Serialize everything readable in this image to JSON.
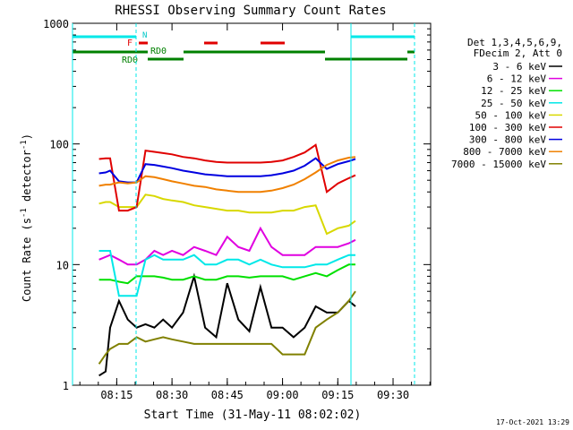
{
  "chart_data": {
    "type": "line",
    "title": "RHESSI Observing Summary Count Rates",
    "xlabel": "Start Time (31-May-11 08:02:02)",
    "ylabel_main": "Count Rate (s",
    "ylabel_sup1": "-1",
    "ylabel_mid": " detector",
    "ylabel_sup2": "-1",
    "ylabel_end": ")",
    "y_scale": "log",
    "ylim": [
      1,
      1000
    ],
    "xlim_minutes": [
      8.05,
      9.67
    ],
    "x_ticks": [
      {
        "label": "08:15",
        "value": 8.25
      },
      {
        "label": "08:30",
        "value": 8.5
      },
      {
        "label": "08:45",
        "value": 8.75
      },
      {
        "label": "09:00",
        "value": 9.0
      },
      {
        "label": "09:15",
        "value": 9.25
      },
      {
        "label": "09:30",
        "value": 9.5
      }
    ],
    "y_ticks": [
      {
        "label": "1",
        "value": 1
      },
      {
        "label": "10",
        "value": 10
      },
      {
        "label": "100",
        "value": 100
      },
      {
        "label": "1000",
        "value": 1000
      }
    ],
    "legend_header": [
      "Det 1,3,4,5,6,9,",
      "FDecim 2, Att 0"
    ],
    "legend_placement": "right",
    "timestamp": "17-Oct-2021 13:29",
    "flags": {
      "N_label": "N",
      "F_label": "F",
      "RD0_label_top": "RD0",
      "RD0_label_bottom": "RD0"
    },
    "series": [
      {
        "name": "3 - 6 keV",
        "color": "#000000",
        "x": [
          8.17,
          8.2,
          8.22,
          8.26,
          8.3,
          8.34,
          8.38,
          8.42,
          8.46,
          8.5,
          8.55,
          8.6,
          8.65,
          8.7,
          8.75,
          8.8,
          8.85,
          8.9,
          8.95,
          9.0,
          9.05,
          9.1,
          9.15,
          9.2,
          9.25,
          9.3,
          9.33
        ],
        "y": [
          1.2,
          1.3,
          3.0,
          5.0,
          3.5,
          3.0,
          3.2,
          3.0,
          3.5,
          3.0,
          4.0,
          8.0,
          3.0,
          2.5,
          7.0,
          3.5,
          2.8,
          6.5,
          3.0,
          3.0,
          2.5,
          3.0,
          4.5,
          4.0,
          4.0,
          5.0,
          4.5
        ]
      },
      {
        "name": "6 - 12 keV",
        "color": "#e000e0",
        "x": [
          8.17,
          8.22,
          8.26,
          8.3,
          8.34,
          8.38,
          8.42,
          8.46,
          8.5,
          8.55,
          8.6,
          8.65,
          8.7,
          8.75,
          8.8,
          8.85,
          8.9,
          8.95,
          9.0,
          9.05,
          9.1,
          9.15,
          9.2,
          9.25,
          9.3,
          9.33
        ],
        "y": [
          11,
          12,
          11,
          10,
          10,
          11,
          13,
          12,
          13,
          12,
          14,
          13,
          12,
          17,
          14,
          13,
          20,
          14,
          12,
          12,
          12,
          14,
          14,
          14,
          15,
          16
        ]
      },
      {
        "name": "12 - 25 keV",
        "color": "#00e000",
        "x": [
          8.17,
          8.22,
          8.26,
          8.3,
          8.34,
          8.38,
          8.42,
          8.46,
          8.5,
          8.55,
          8.6,
          8.65,
          8.7,
          8.75,
          8.8,
          8.85,
          8.9,
          8.95,
          9.0,
          9.05,
          9.1,
          9.15,
          9.2,
          9.25,
          9.3,
          9.33
        ],
        "y": [
          7.5,
          7.5,
          7.2,
          7.0,
          8.0,
          8.0,
          8.0,
          7.8,
          7.5,
          7.5,
          8.0,
          7.5,
          7.5,
          8.0,
          8.0,
          7.8,
          8.0,
          8.0,
          8.0,
          7.5,
          8.0,
          8.5,
          8.0,
          9.0,
          10,
          10
        ]
      },
      {
        "name": "25 - 50 keV",
        "color": "#00e8e8",
        "x": [
          8.17,
          8.22,
          8.26,
          8.3,
          8.34,
          8.38,
          8.42,
          8.46,
          8.5,
          8.55,
          8.6,
          8.65,
          8.7,
          8.75,
          8.8,
          8.85,
          8.9,
          8.95,
          9.0,
          9.05,
          9.1,
          9.15,
          9.2,
          9.25,
          9.3,
          9.33
        ],
        "y": [
          13,
          13,
          5.5,
          5.5,
          5.5,
          11,
          12,
          11,
          11,
          11,
          12,
          10,
          10,
          11,
          11,
          10,
          11,
          10,
          9.5,
          9.5,
          9.5,
          10,
          10,
          11,
          12,
          12
        ]
      },
      {
        "name": "50 - 100 keV",
        "color": "#d8d800",
        "x": [
          8.17,
          8.2,
          8.22,
          8.26,
          8.3,
          8.34,
          8.38,
          8.42,
          8.46,
          8.5,
          8.55,
          8.6,
          8.65,
          8.7,
          8.75,
          8.8,
          8.85,
          8.9,
          8.95,
          9.0,
          9.05,
          9.1,
          9.15,
          9.2,
          9.25,
          9.3,
          9.33
        ],
        "y": [
          32,
          33,
          33,
          30,
          30,
          30,
          38,
          37,
          35,
          34,
          33,
          31,
          30,
          29,
          28,
          28,
          27,
          27,
          27,
          28,
          28,
          30,
          31,
          18,
          20,
          21,
          23
        ]
      },
      {
        "name": "100 - 300 keV",
        "color": "#e00000",
        "x": [
          8.17,
          8.2,
          8.22,
          8.26,
          8.3,
          8.34,
          8.38,
          8.42,
          8.46,
          8.5,
          8.55,
          8.6,
          8.65,
          8.7,
          8.75,
          8.8,
          8.85,
          8.9,
          8.95,
          9.0,
          9.05,
          9.1,
          9.15,
          9.2,
          9.25,
          9.3,
          9.33
        ],
        "y": [
          75,
          76,
          76,
          28,
          28,
          30,
          88,
          86,
          84,
          82,
          78,
          76,
          73,
          71,
          70,
          70,
          70,
          70,
          71,
          73,
          78,
          85,
          98,
          40,
          47,
          52,
          55
        ]
      },
      {
        "name": "300 - 800 keV",
        "color": "#0000e0",
        "x": [
          8.17,
          8.2,
          8.22,
          8.26,
          8.3,
          8.34,
          8.38,
          8.42,
          8.46,
          8.5,
          8.55,
          8.6,
          8.65,
          8.7,
          8.75,
          8.8,
          8.85,
          8.9,
          8.95,
          9.0,
          9.05,
          9.1,
          9.15,
          9.2,
          9.25,
          9.3,
          9.33
        ],
        "y": [
          57,
          58,
          60,
          49,
          48,
          48,
          68,
          67,
          65,
          63,
          60,
          58,
          56,
          55,
          54,
          54,
          54,
          54,
          55,
          57,
          60,
          66,
          76,
          62,
          68,
          72,
          75
        ]
      },
      {
        "name": "800 - 7000 keV",
        "color": "#f08000",
        "x": [
          8.17,
          8.2,
          8.22,
          8.26,
          8.3,
          8.34,
          8.38,
          8.42,
          8.46,
          8.5,
          8.55,
          8.6,
          8.65,
          8.7,
          8.75,
          8.8,
          8.85,
          8.9,
          8.95,
          9.0,
          9.05,
          9.1,
          9.15,
          9.2,
          9.25,
          9.3,
          9.33
        ],
        "y": [
          45,
          46,
          46,
          48,
          47,
          48,
          54,
          53,
          51,
          49,
          47,
          45,
          44,
          42,
          41,
          40,
          40,
          40,
          41,
          43,
          46,
          51,
          58,
          67,
          73,
          77,
          78
        ]
      },
      {
        "name": "7000 - 15000 keV",
        "color": "#808000",
        "x": [
          8.17,
          8.2,
          8.22,
          8.26,
          8.3,
          8.34,
          8.38,
          8.42,
          8.46,
          8.5,
          8.55,
          8.6,
          8.65,
          8.7,
          8.75,
          8.8,
          8.85,
          8.9,
          8.95,
          9.0,
          9.05,
          9.1,
          9.15,
          9.2,
          9.25,
          9.3,
          9.33
        ],
        "y": [
          1.5,
          1.8,
          2.0,
          2.2,
          2.2,
          2.5,
          2.3,
          2.4,
          2.5,
          2.4,
          2.3,
          2.2,
          2.2,
          2.2,
          2.2,
          2.2,
          2.2,
          2.2,
          2.2,
          1.8,
          1.8,
          1.8,
          3.0,
          3.5,
          4.0,
          5.0,
          6.0
        ]
      }
    ]
  }
}
